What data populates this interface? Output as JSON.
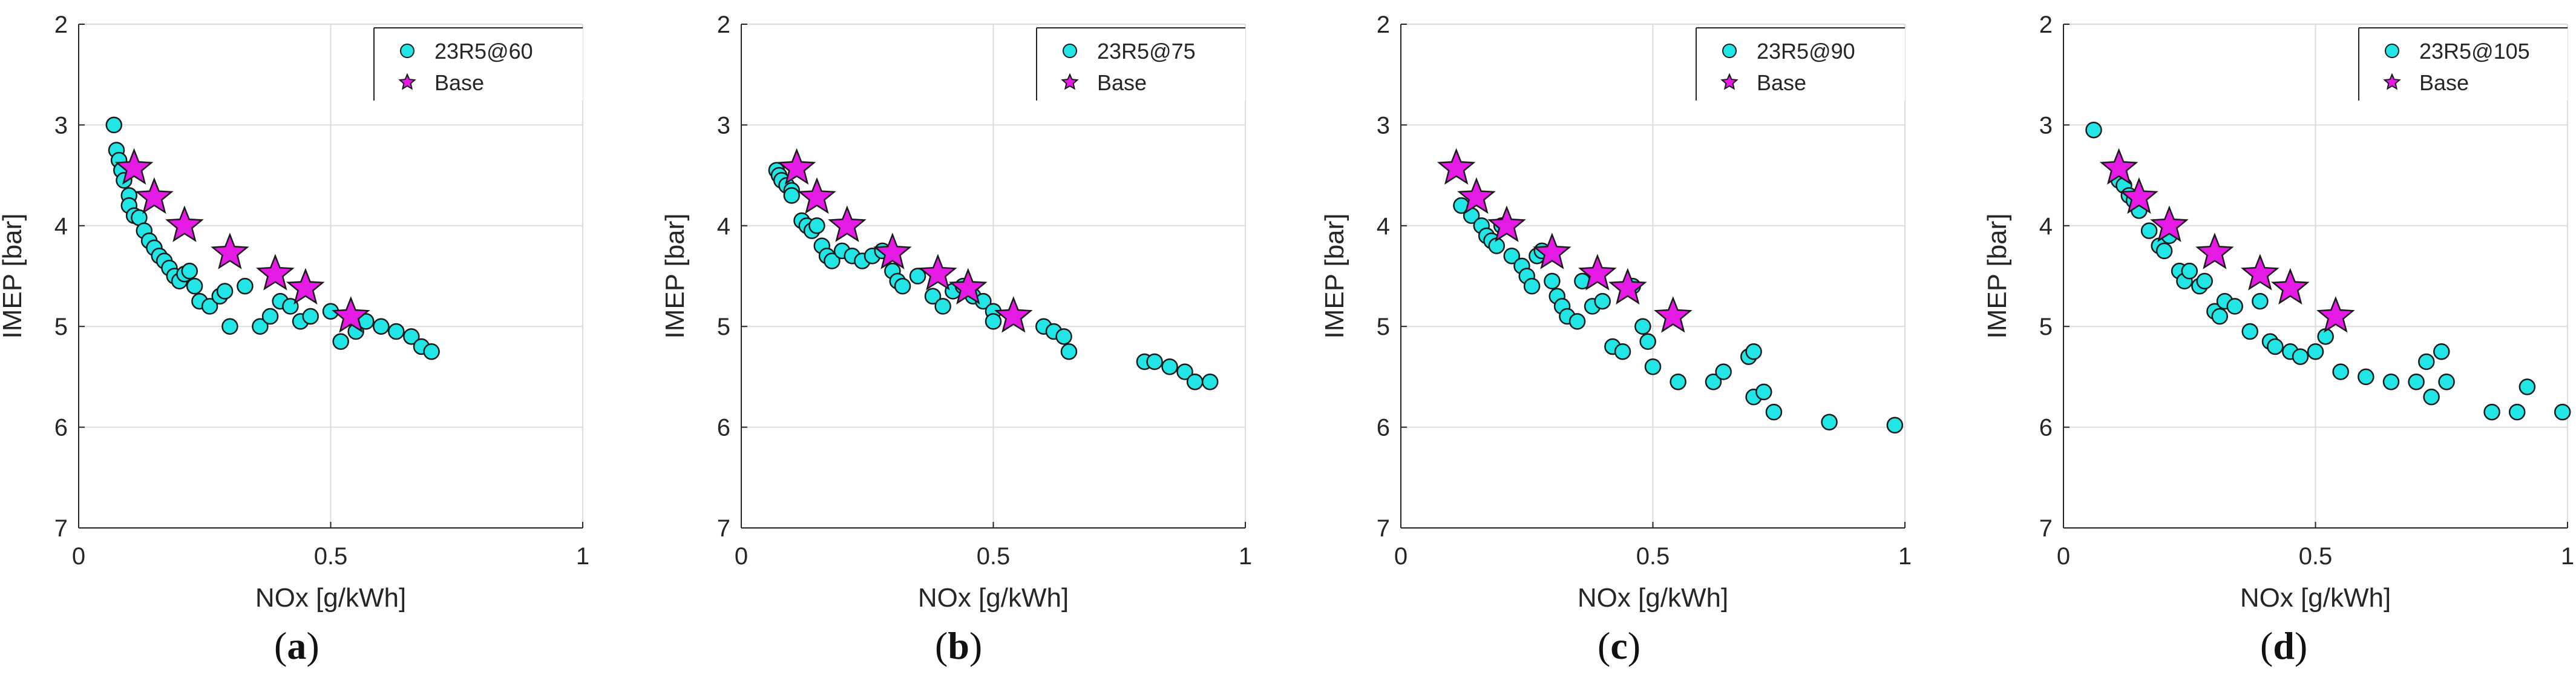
{
  "chart_data": [
    {
      "type": "scatter",
      "panel_label": "a",
      "xlabel": "NOx [g/kWh]",
      "ylabel": "IMEP [bar]",
      "xlim": [
        0,
        1
      ],
      "ylim": [
        2,
        7
      ],
      "y_reversed": true,
      "xticks": [
        "0",
        "0.5",
        "1"
      ],
      "yticks": [
        "2",
        "3",
        "4",
        "5",
        "6",
        "7"
      ],
      "grid": true,
      "legend": "top-right",
      "series": [
        {
          "name": "23R5@60",
          "marker": "circle",
          "color": "#22E5E5",
          "points": [
            [
              0.07,
              3.0
            ],
            [
              0.075,
              3.25
            ],
            [
              0.08,
              3.35
            ],
            [
              0.085,
              3.45
            ],
            [
              0.09,
              3.55
            ],
            [
              0.1,
              3.7
            ],
            [
              0.1,
              3.8
            ],
            [
              0.11,
              3.9
            ],
            [
              0.12,
              3.92
            ],
            [
              0.13,
              4.05
            ],
            [
              0.14,
              4.15
            ],
            [
              0.15,
              4.22
            ],
            [
              0.16,
              4.3
            ],
            [
              0.17,
              4.35
            ],
            [
              0.18,
              4.42
            ],
            [
              0.19,
              4.5
            ],
            [
              0.2,
              4.55
            ],
            [
              0.21,
              4.48
            ],
            [
              0.22,
              4.45
            ],
            [
              0.23,
              4.6
            ],
            [
              0.24,
              4.75
            ],
            [
              0.26,
              4.8
            ],
            [
              0.28,
              4.7
            ],
            [
              0.29,
              4.65
            ],
            [
              0.3,
              5.0
            ],
            [
              0.33,
              4.6
            ],
            [
              0.36,
              5.0
            ],
            [
              0.38,
              4.9
            ],
            [
              0.4,
              4.75
            ],
            [
              0.42,
              4.8
            ],
            [
              0.44,
              4.95
            ],
            [
              0.46,
              4.9
            ],
            [
              0.5,
              4.85
            ],
            [
              0.52,
              5.15
            ],
            [
              0.55,
              5.05
            ],
            [
              0.57,
              4.95
            ],
            [
              0.6,
              5.0
            ],
            [
              0.63,
              5.05
            ],
            [
              0.66,
              5.1
            ],
            [
              0.68,
              5.2
            ],
            [
              0.7,
              5.25
            ]
          ]
        },
        {
          "name": "Base",
          "marker": "star",
          "color": "#E51AE5",
          "points": [
            [
              0.11,
              3.43
            ],
            [
              0.15,
              3.72
            ],
            [
              0.21,
              4.0
            ],
            [
              0.3,
              4.27
            ],
            [
              0.39,
              4.48
            ],
            [
              0.45,
              4.62
            ],
            [
              0.54,
              4.9
            ]
          ]
        }
      ]
    },
    {
      "type": "scatter",
      "panel_label": "b",
      "xlabel": "NOx [g/kWh]",
      "ylabel": "IMEP [bar]",
      "xlim": [
        0,
        1
      ],
      "ylim": [
        2,
        7
      ],
      "y_reversed": true,
      "xticks": [
        "0",
        "0.5",
        "1"
      ],
      "yticks": [
        "2",
        "3",
        "4",
        "5",
        "6",
        "7"
      ],
      "grid": true,
      "legend": "top-right",
      "series": [
        {
          "name": "23R5@75",
          "marker": "circle",
          "color": "#22E5E5",
          "points": [
            [
              0.07,
              3.45
            ],
            [
              0.075,
              3.5
            ],
            [
              0.08,
              3.55
            ],
            [
              0.09,
              3.6
            ],
            [
              0.1,
              3.65
            ],
            [
              0.1,
              3.7
            ],
            [
              0.12,
              3.95
            ],
            [
              0.13,
              4.0
            ],
            [
              0.14,
              4.05
            ],
            [
              0.15,
              4.0
            ],
            [
              0.16,
              4.2
            ],
            [
              0.17,
              4.3
            ],
            [
              0.18,
              4.35
            ],
            [
              0.2,
              4.25
            ],
            [
              0.22,
              4.3
            ],
            [
              0.24,
              4.35
            ],
            [
              0.26,
              4.3
            ],
            [
              0.28,
              4.25
            ],
            [
              0.3,
              4.45
            ],
            [
              0.31,
              4.55
            ],
            [
              0.32,
              4.6
            ],
            [
              0.35,
              4.5
            ],
            [
              0.38,
              4.7
            ],
            [
              0.4,
              4.8
            ],
            [
              0.42,
              4.65
            ],
            [
              0.44,
              4.6
            ],
            [
              0.46,
              4.7
            ],
            [
              0.48,
              4.75
            ],
            [
              0.5,
              4.85
            ],
            [
              0.5,
              4.95
            ],
            [
              0.6,
              5.0
            ],
            [
              0.62,
              5.05
            ],
            [
              0.64,
              5.1
            ],
            [
              0.65,
              5.25
            ],
            [
              0.8,
              5.35
            ],
            [
              0.82,
              5.35
            ],
            [
              0.85,
              5.4
            ],
            [
              0.88,
              5.45
            ],
            [
              0.9,
              5.55
            ],
            [
              0.93,
              5.55
            ]
          ]
        },
        {
          "name": "Base",
          "marker": "star",
          "color": "#E51AE5",
          "points": [
            [
              0.11,
              3.43
            ],
            [
              0.15,
              3.72
            ],
            [
              0.21,
              4.0
            ],
            [
              0.3,
              4.27
            ],
            [
              0.39,
              4.48
            ],
            [
              0.45,
              4.62
            ],
            [
              0.54,
              4.9
            ]
          ]
        }
      ]
    },
    {
      "type": "scatter",
      "panel_label": "c",
      "xlabel": "NOx [g/kWh]",
      "ylabel": "IMEP [bar]",
      "xlim": [
        0,
        1
      ],
      "ylim": [
        2,
        7
      ],
      "y_reversed": true,
      "xticks": [
        "0",
        "0.5",
        "1"
      ],
      "yticks": [
        "2",
        "3",
        "4",
        "5",
        "6",
        "7"
      ],
      "grid": true,
      "legend": "top-right",
      "series": [
        {
          "name": "23R5@90",
          "marker": "circle",
          "color": "#22E5E5",
          "points": [
            [
              0.12,
              3.8
            ],
            [
              0.14,
              3.9
            ],
            [
              0.16,
              4.0
            ],
            [
              0.17,
              4.1
            ],
            [
              0.18,
              4.15
            ],
            [
              0.19,
              4.2
            ],
            [
              0.2,
              4.0
            ],
            [
              0.22,
              4.3
            ],
            [
              0.24,
              4.4
            ],
            [
              0.25,
              4.5
            ],
            [
              0.26,
              4.6
            ],
            [
              0.27,
              4.3
            ],
            [
              0.28,
              4.25
            ],
            [
              0.3,
              4.55
            ],
            [
              0.31,
              4.7
            ],
            [
              0.32,
              4.8
            ],
            [
              0.33,
              4.9
            ],
            [
              0.35,
              4.95
            ],
            [
              0.36,
              4.55
            ],
            [
              0.38,
              4.8
            ],
            [
              0.4,
              4.75
            ],
            [
              0.42,
              5.2
            ],
            [
              0.44,
              5.25
            ],
            [
              0.46,
              4.6
            ],
            [
              0.48,
              5.0
            ],
            [
              0.49,
              5.15
            ],
            [
              0.5,
              5.4
            ],
            [
              0.55,
              5.55
            ],
            [
              0.62,
              5.55
            ],
            [
              0.64,
              5.45
            ],
            [
              0.69,
              5.3
            ],
            [
              0.7,
              5.25
            ],
            [
              0.7,
              5.7
            ],
            [
              0.72,
              5.65
            ],
            [
              0.74,
              5.85
            ],
            [
              0.85,
              5.95
            ],
            [
              0.98,
              5.98
            ]
          ]
        },
        {
          "name": "Base",
          "marker": "star",
          "color": "#E51AE5",
          "points": [
            [
              0.11,
              3.43
            ],
            [
              0.15,
              3.72
            ],
            [
              0.21,
              4.0
            ],
            [
              0.3,
              4.27
            ],
            [
              0.39,
              4.48
            ],
            [
              0.45,
              4.62
            ],
            [
              0.54,
              4.9
            ]
          ]
        }
      ]
    },
    {
      "type": "scatter",
      "panel_label": "d",
      "xlabel": "NOx [g/kWh]",
      "ylabel": "IMEP [bar]",
      "xlim": [
        0,
        1
      ],
      "ylim": [
        2,
        7
      ],
      "y_reversed": true,
      "xticks": [
        "0",
        "0.5",
        "1"
      ],
      "yticks": [
        "2",
        "3",
        "4",
        "5",
        "6",
        "7"
      ],
      "grid": true,
      "legend": "top-right",
      "series": [
        {
          "name": "23R5@105",
          "marker": "circle",
          "color": "#22E5E5",
          "points": [
            [
              0.06,
              3.05
            ],
            [
              0.11,
              3.55
            ],
            [
              0.12,
              3.6
            ],
            [
              0.13,
              3.7
            ],
            [
              0.14,
              3.75
            ],
            [
              0.15,
              3.85
            ],
            [
              0.17,
              4.05
            ],
            [
              0.19,
              4.2
            ],
            [
              0.2,
              4.25
            ],
            [
              0.21,
              4.1
            ],
            [
              0.23,
              4.45
            ],
            [
              0.24,
              4.55
            ],
            [
              0.25,
              4.45
            ],
            [
              0.27,
              4.6
            ],
            [
              0.28,
              4.55
            ],
            [
              0.3,
              4.85
            ],
            [
              0.31,
              4.9
            ],
            [
              0.32,
              4.75
            ],
            [
              0.34,
              4.8
            ],
            [
              0.37,
              5.05
            ],
            [
              0.39,
              4.75
            ],
            [
              0.41,
              5.15
            ],
            [
              0.42,
              5.2
            ],
            [
              0.45,
              5.25
            ],
            [
              0.47,
              5.3
            ],
            [
              0.5,
              5.25
            ],
            [
              0.52,
              5.1
            ],
            [
              0.55,
              5.45
            ],
            [
              0.6,
              5.5
            ],
            [
              0.65,
              5.55
            ],
            [
              0.7,
              5.55
            ],
            [
              0.72,
              5.35
            ],
            [
              0.73,
              5.7
            ],
            [
              0.75,
              5.25
            ],
            [
              0.76,
              5.55
            ],
            [
              0.85,
              5.85
            ],
            [
              0.9,
              5.85
            ],
            [
              0.92,
              5.6
            ],
            [
              0.99,
              5.85
            ]
          ]
        },
        {
          "name": "Base",
          "marker": "star",
          "color": "#E51AE5",
          "points": [
            [
              0.11,
              3.43
            ],
            [
              0.15,
              3.72
            ],
            [
              0.21,
              4.0
            ],
            [
              0.3,
              4.27
            ],
            [
              0.39,
              4.48
            ],
            [
              0.45,
              4.62
            ],
            [
              0.54,
              4.9
            ]
          ]
        }
      ]
    }
  ]
}
